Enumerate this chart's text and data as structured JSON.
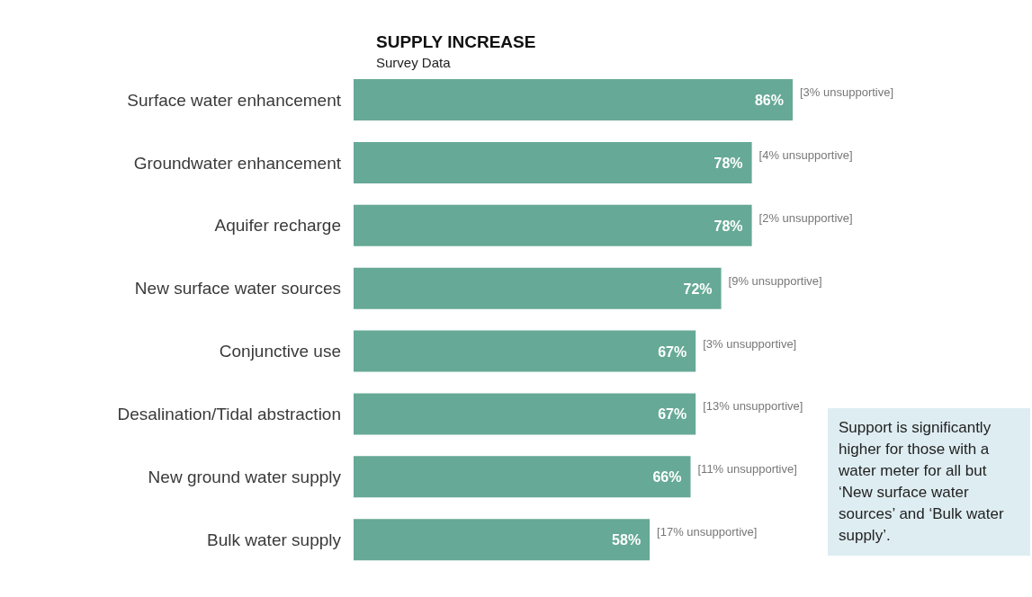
{
  "chart_data": {
    "type": "bar",
    "orientation": "horizontal",
    "title": "SUPPLY INCREASE",
    "subtitle": "Survey Data",
    "categories": [
      "Surface water enhancement",
      "Groundwater enhancement",
      "Aquifer recharge",
      "New surface water sources",
      "Conjunctive use",
      "Desalination/Tidal abstraction",
      "New ground water supply",
      "Bulk water supply"
    ],
    "values": [
      86,
      78,
      78,
      72,
      67,
      67,
      66,
      58
    ],
    "value_labels": [
      "86%",
      "78%",
      "78%",
      "72%",
      "67%",
      "67%",
      "66%",
      "58%"
    ],
    "color": "#66a996",
    "annotations": [
      {
        "text": "[3% unsupportive]",
        "x": 86,
        "y": "Surface water enhancement"
      },
      {
        "text": "[4% unsupportive]",
        "x": 78,
        "y": "Groundwater enhancement"
      },
      {
        "text": "[2% unsupportive]",
        "x": 78,
        "y": "Aquifer recharge"
      },
      {
        "text": "[9% unsupportive]",
        "x": 72,
        "y": "New surface water sources"
      },
      {
        "text": "[3% unsupportive]",
        "x": 67,
        "y": "Conjunctive use"
      },
      {
        "text": "[13% unsupportive]",
        "x": 67,
        "y": "Desalination/Tidal abstraction"
      },
      {
        "text": "[11% unsupportive]",
        "x": 66,
        "y": "New ground water supply"
      },
      {
        "text": "[17% unsupportive]",
        "x": 58,
        "y": "Bulk water supply"
      },
      "Support is significantly higher for those with a water meter for all but ‘New surface water sources’ and ‘Bulk water supply’."
    ]
  }
}
